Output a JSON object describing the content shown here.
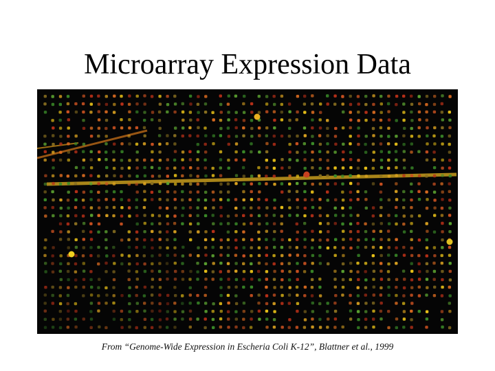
{
  "slide": {
    "title": "Microarray Expression Data",
    "caption": "From “Genome-Wide Expression in Escheria Coli K-12”, Blattner et al., 1999"
  },
  "image": {
    "description": "Scanned DNA microarray: dark background with a dense grid of small red, yellow and green fluorescent spots",
    "spot_colors": [
      "#e8c018",
      "#d8a020",
      "#c85020",
      "#b83018",
      "#d86a20",
      "#5aa030",
      "#3a8a28",
      "#8a7020"
    ],
    "background_color": "#050505"
  }
}
